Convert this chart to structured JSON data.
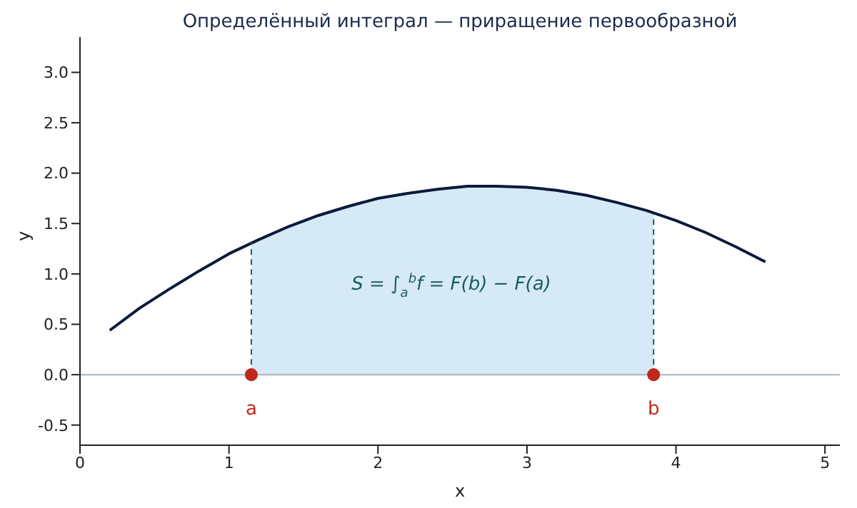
{
  "chart_data": {
    "type": "line",
    "title": "Определённый интеграл — приращение первообразной",
    "xlabel": "x",
    "ylabel": "y",
    "xlim": [
      0,
      5.1
    ],
    "xticks": [
      0,
      1,
      2,
      3,
      4,
      5
    ],
    "ylim": [
      -0.7,
      3.35
    ],
    "yticks": [
      -0.5,
      {
        "value": 0,
        "label": "0.0"
      },
      0.5,
      {
        "value": 1,
        "label": "1.0"
      },
      1.5,
      {
        "value": 2,
        "label": "2.0"
      },
      2.5,
      {
        "value": 3,
        "label": "3.0"
      }
    ],
    "series": [
      {
        "type": "area",
        "color": "#d6e9f7",
        "x": [
          1.15,
          1.2,
          1.4,
          1.6,
          1.8,
          2.0,
          2.2,
          2.4,
          2.6,
          2.75,
          2.8,
          3.0,
          3.2,
          3.4,
          3.6,
          3.8,
          3.85
        ],
        "values": [
          1.31,
          1.34,
          1.47,
          1.58,
          1.67,
          1.75,
          1.8,
          1.84,
          1.87,
          1.87,
          1.87,
          1.86,
          1.83,
          1.78,
          1.71,
          1.63,
          1.6
        ]
      },
      {
        "color": "#0b1a3a",
        "x": [
          0.2,
          0.4,
          0.6,
          0.8,
          1.0,
          1.2,
          1.4,
          1.6,
          1.8,
          2.0,
          2.2,
          2.4,
          2.6,
          2.75,
          2.8,
          3.0,
          3.2,
          3.4,
          3.6,
          3.8,
          4.0,
          4.2,
          4.4,
          4.6
        ],
        "values": [
          0.44,
          0.66,
          0.85,
          1.03,
          1.2,
          1.34,
          1.47,
          1.58,
          1.67,
          1.75,
          1.8,
          1.84,
          1.87,
          1.87,
          1.87,
          1.86,
          1.83,
          1.78,
          1.71,
          1.63,
          1.53,
          1.41,
          1.27,
          1.12
        ]
      },
      {
        "type": "line",
        "color": "#1f5f5f",
        "line_style": "dashed",
        "x": [
          1.15,
          1.15
        ],
        "values": [
          0,
          1.31
        ]
      },
      {
        "type": "line",
        "color": "#1f5f5f",
        "line_style": "dashed",
        "x": [
          3.85,
          3.85
        ],
        "values": [
          0,
          1.6
        ]
      },
      {
        "type": "scatter",
        "color": "#c0281c",
        "x": [
          1.15,
          3.85
        ],
        "values": [
          0,
          0
        ],
        "value_labels": [
          "a",
          "b"
        ]
      }
    ],
    "ref_lines": [
      {
        "axis": "y",
        "value": 0,
        "color": "#a8b4c0"
      }
    ],
    "annotations": [
      "S = ∫$_{a}$$^{b}$f = F(b) − F(a)"
    ]
  }
}
